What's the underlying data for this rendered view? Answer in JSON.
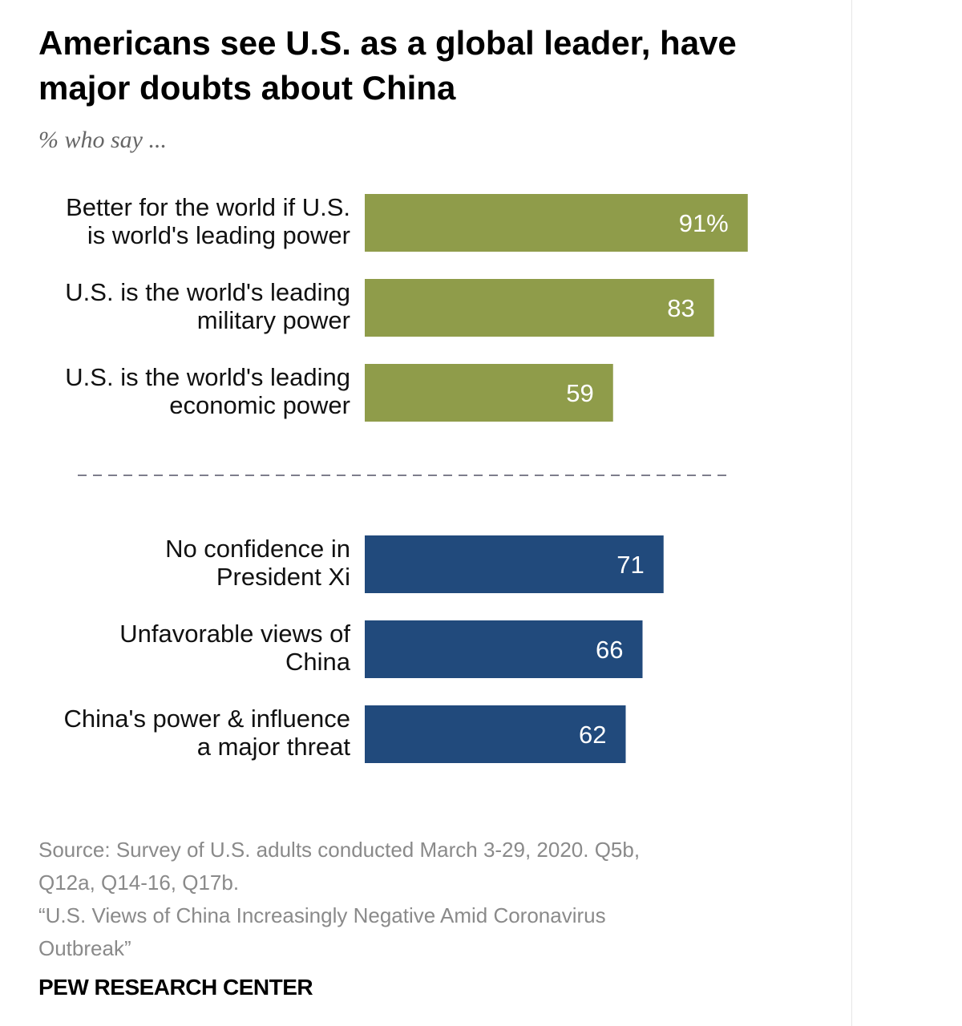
{
  "chart_data": {
    "type": "bar",
    "orientation": "horizontal",
    "title": "Americans see U.S. as a global leader, have major doubts about China",
    "subtitle": "% who say ...",
    "groups": [
      {
        "color": "#8f9c4a",
        "bars": [
          {
            "label_lines": [
              "Better for the world if U.S.",
              "is world's leading power"
            ],
            "value": 91,
            "value_label": "91%"
          },
          {
            "label_lines": [
              "U.S. is the world's leading",
              "military power"
            ],
            "value": 83,
            "value_label": "83"
          },
          {
            "label_lines": [
              "U.S. is the world's leading",
              "economic power"
            ],
            "value": 59,
            "value_label": "59"
          }
        ]
      },
      {
        "color": "#214a7c",
        "bars": [
          {
            "label_lines": [
              "No confidence in",
              "President Xi"
            ],
            "value": 71,
            "value_label": "71"
          },
          {
            "label_lines": [
              "Unfavorable views of",
              "China"
            ],
            "value": 66,
            "value_label": "66"
          },
          {
            "label_lines": [
              "China's power & influence",
              "a major threat"
            ],
            "value": 62,
            "value_label": "62"
          }
        ]
      }
    ],
    "xlim": [
      0,
      100
    ],
    "grid": false,
    "separator": "dashed"
  },
  "footer": {
    "source_line1": "Source: Survey of U.S. adults conducted March 3-29, 2020. Q5b,",
    "source_line2": "Q12a, Q14-16, Q17b.",
    "report_line1": "“U.S. Views of China Increasingly Negative Amid Coronavirus",
    "report_line2": "Outbreak”",
    "brand": "PEW RESEARCH CENTER"
  }
}
